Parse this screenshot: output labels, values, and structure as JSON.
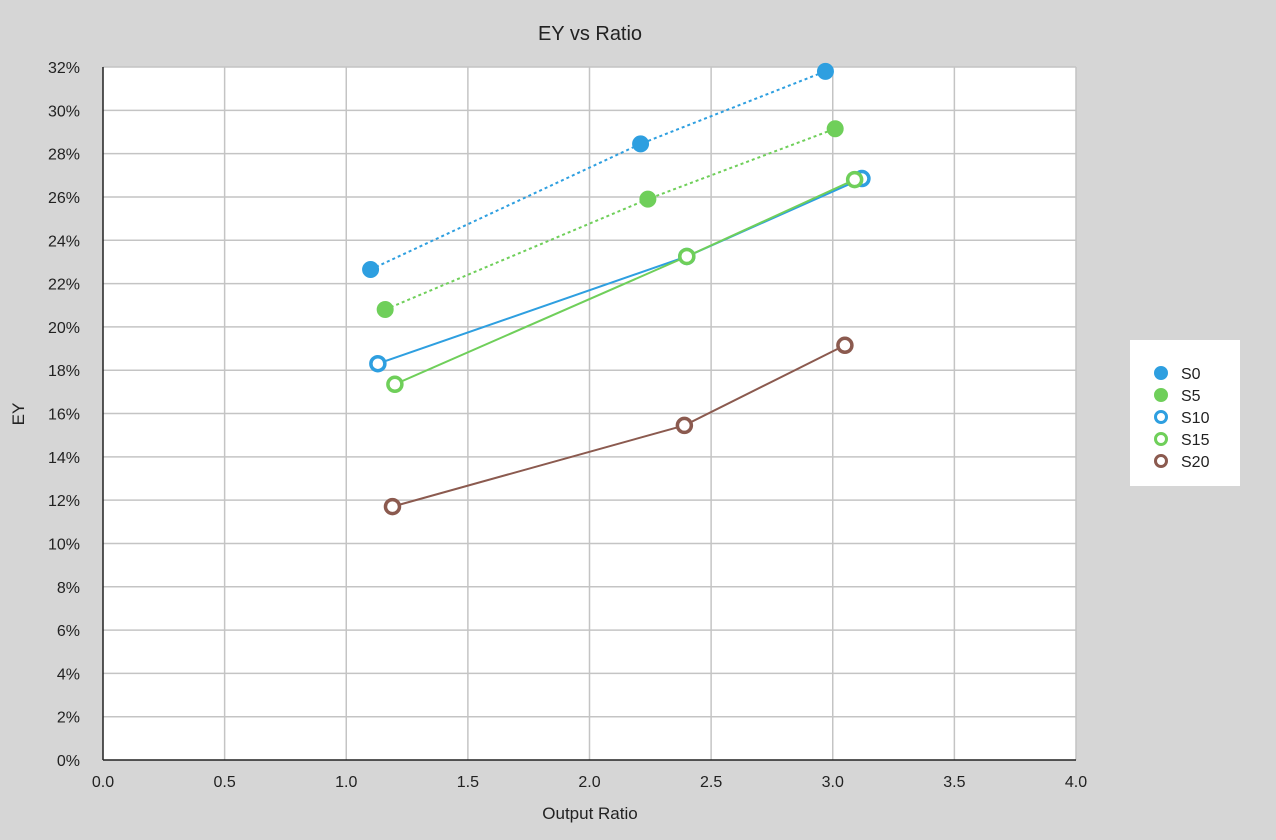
{
  "chart_data": {
    "type": "scatter",
    "title": "EY vs Ratio",
    "xlabel": "Output Ratio",
    "ylabel": "EY",
    "xlim": [
      0,
      4
    ],
    "ylim": [
      0,
      0.32
    ],
    "x_ticks": [
      "0.0",
      "0.5",
      "1.0",
      "1.5",
      "2.0",
      "2.5",
      "3.0",
      "3.5",
      "4.0"
    ],
    "y_ticks": [
      "0%",
      "2%",
      "4%",
      "6%",
      "8%",
      "10%",
      "12%",
      "14%",
      "16%",
      "18%",
      "20%",
      "22%",
      "24%",
      "26%",
      "28%",
      "30%",
      "32%"
    ],
    "grid": true,
    "legend_position": "right",
    "series": [
      {
        "name": "S0",
        "color": "#2e9fe0",
        "marker": "filled",
        "line": "dotted",
        "points": [
          [
            1.1,
            0.2265
          ],
          [
            2.21,
            0.2845
          ],
          [
            2.97,
            0.318
          ]
        ]
      },
      {
        "name": "S5",
        "color": "#6fcf5a",
        "marker": "filled",
        "line": "dotted",
        "points": [
          [
            1.16,
            0.208
          ],
          [
            2.24,
            0.259
          ],
          [
            3.01,
            0.2915
          ]
        ]
      },
      {
        "name": "S10",
        "color": "#2e9fe0",
        "marker": "open",
        "line": "solid",
        "points": [
          [
            1.13,
            0.183
          ],
          [
            2.4,
            0.2325
          ],
          [
            3.12,
            0.2685
          ]
        ]
      },
      {
        "name": "S15",
        "color": "#6fcf5a",
        "marker": "open",
        "line": "solid",
        "points": [
          [
            1.2,
            0.1735
          ],
          [
            2.4,
            0.2325
          ],
          [
            3.09,
            0.268
          ]
        ]
      },
      {
        "name": "S20",
        "color": "#8b5a4f",
        "marker": "open",
        "line": "solid",
        "points": [
          [
            1.19,
            0.117
          ],
          [
            2.39,
            0.1545
          ],
          [
            3.05,
            0.1915
          ]
        ]
      }
    ]
  }
}
